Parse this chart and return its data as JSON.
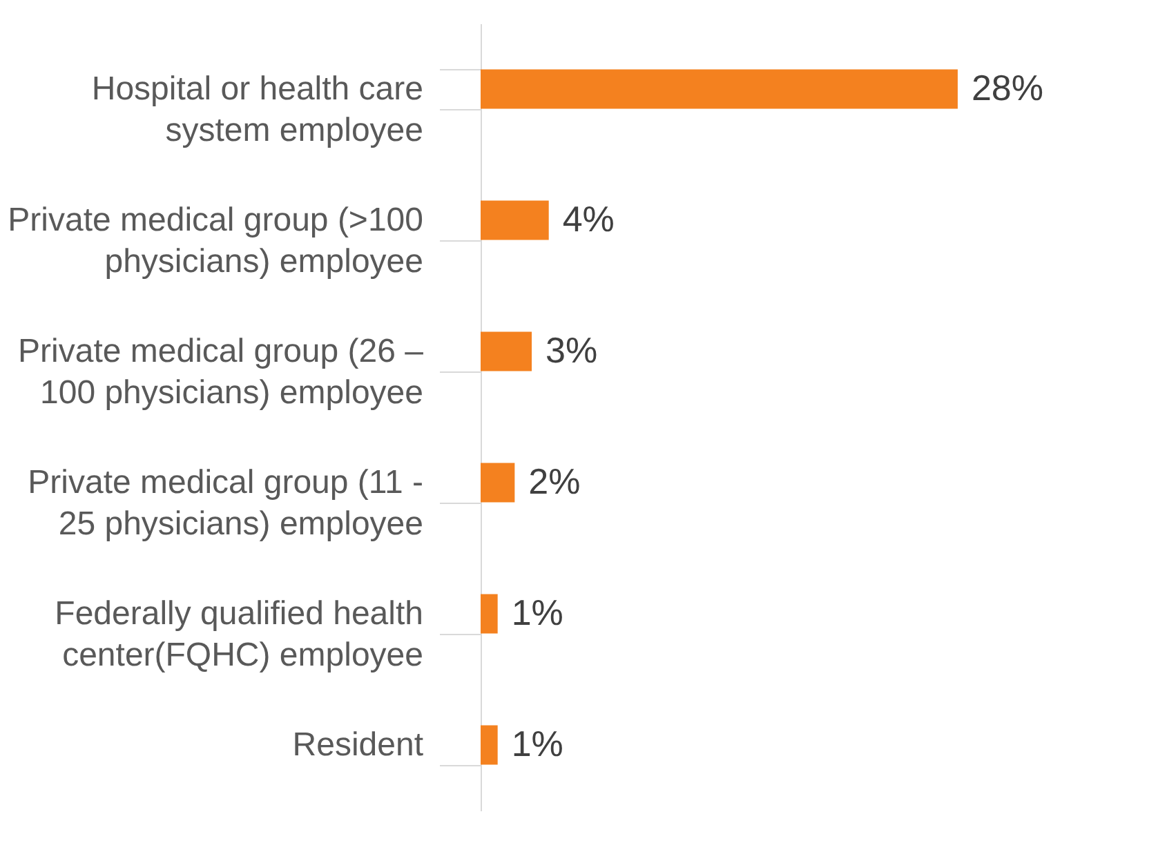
{
  "chart_data": {
    "type": "bar",
    "orientation": "horizontal",
    "categories": [
      "Hospital or health care system employee",
      "Private medical group (>100 physicians) employee",
      "Private medical group (26 – 100 physicians) employee",
      "Private medical group (11 - 25 physicians) employee",
      "Federally qualified health center(FQHC) employee",
      "Resident"
    ],
    "values": [
      28,
      4,
      3,
      2,
      1,
      1
    ],
    "value_labels": [
      "28%",
      "4%",
      "3%",
      "2%",
      "1%",
      "1%"
    ],
    "color": "#f4811f",
    "tick_labels": "y"
  }
}
